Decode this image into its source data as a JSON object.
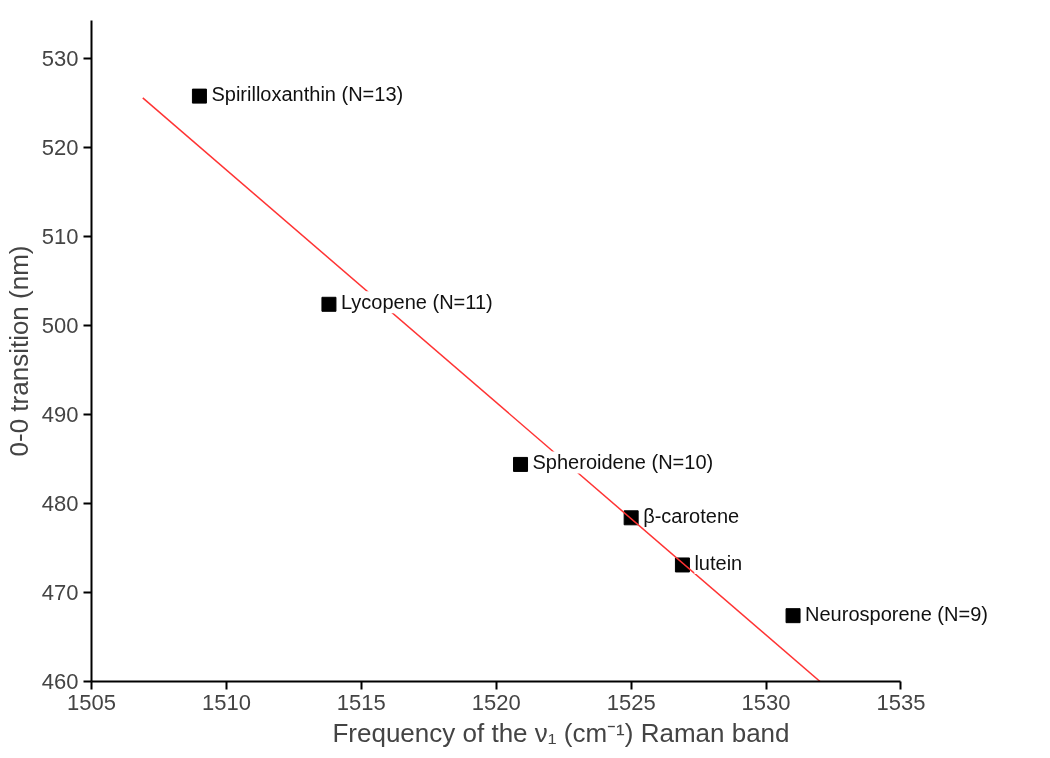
{
  "chart_data": {
    "type": "scatter",
    "xlabel": "Frequency of the ν₁ (cm⁻¹) Raman band",
    "ylabel": "0-0 transition (nm)",
    "xlim": [
      1505,
      1535
    ],
    "ylim": [
      460,
      534.3
    ],
    "xticks": [
      1505,
      1510,
      1515,
      1520,
      1525,
      1530,
      1535
    ],
    "yticks": [
      460,
      470,
      480,
      490,
      500,
      510,
      520,
      530
    ],
    "grid": false,
    "marker": "square",
    "series": [
      {
        "type": "scatter",
        "color": "#000000",
        "x": [
          1509.0,
          1513.8,
          1520.9,
          1525.0,
          1526.9,
          1531.0
        ],
        "values": [
          525.8,
          502.4,
          484.4,
          478.4,
          473.1,
          467.4
        ]
      },
      {
        "type": "line",
        "color": "#ff3333",
        "x": [
          1506.9,
          1532.0
        ],
        "values": [
          525.6,
          460.0
        ],
        "marker": "none",
        "line_style": "solid"
      }
    ],
    "annotations": [
      {
        "text": "Spirilloxanthin (N=13)",
        "x": 1509.0,
        "y": 525.8
      },
      {
        "text": "Lycopene (N=11)",
        "x": 1513.8,
        "y": 502.4
      },
      {
        "text": "Spheroidene (N=10)",
        "x": 1520.9,
        "y": 484.4
      },
      {
        "text": "β-carotene",
        "x": 1525.0,
        "y": 478.4
      },
      {
        "text": "lutein",
        "x": 1526.9,
        "y": 473.1
      },
      {
        "text": "Neurosporene (N=9)",
        "x": 1531.0,
        "y": 467.4
      }
    ]
  }
}
